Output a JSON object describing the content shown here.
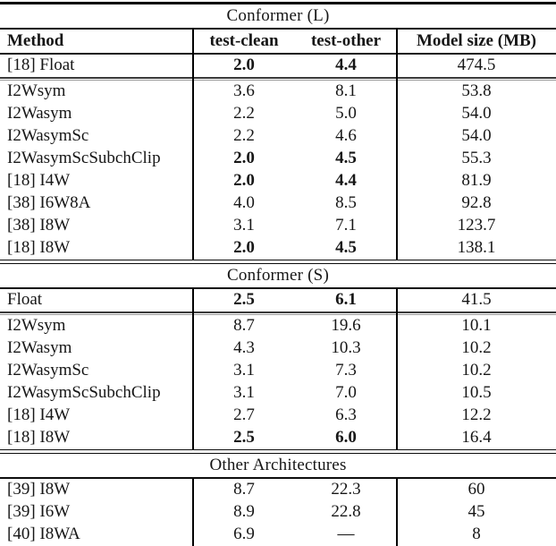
{
  "table": {
    "columns": [
      "Method",
      "test-clean",
      "test-other",
      "Model size (MB)"
    ],
    "sections": [
      {
        "title": "Conformer (L)",
        "lead_row": {
          "method": "[18] Float",
          "clean": "2.0",
          "other": "4.4",
          "size": "474.5",
          "bold": true
        },
        "rows": [
          {
            "method": "I2Wsym",
            "clean": "3.6",
            "other": "8.1",
            "size": "53.8",
            "bold": false
          },
          {
            "method": "I2Wasym",
            "clean": "2.2",
            "other": "5.0",
            "size": "54.0",
            "bold": false
          },
          {
            "method": "I2WasymSc",
            "clean": "2.2",
            "other": "4.6",
            "size": "54.0",
            "bold": false
          },
          {
            "method": "I2WasymScSubchClip",
            "clean": "2.0",
            "other": "4.5",
            "size": "55.3",
            "bold": true
          },
          {
            "method": "[18] I4W",
            "clean": "2.0",
            "other": "4.4",
            "size": "81.9",
            "bold": true
          },
          {
            "method": "[38] I6W8A",
            "clean": "4.0",
            "other": "8.5",
            "size": "92.8",
            "bold": false
          },
          {
            "method": "[38] I8W",
            "clean": "3.1",
            "other": "7.1",
            "size": "123.7",
            "bold": false
          },
          {
            "method": "[18] I8W",
            "clean": "2.0",
            "other": "4.5",
            "size": "138.1",
            "bold": true
          }
        ]
      },
      {
        "title": "Conformer (S)",
        "lead_row": {
          "method": "Float",
          "clean": "2.5",
          "other": "6.1",
          "size": "41.5",
          "bold": true
        },
        "rows": [
          {
            "method": "I2Wsym",
            "clean": "8.7",
            "other": "19.6",
            "size": "10.1",
            "bold": false
          },
          {
            "method": "I2Wasym",
            "clean": "4.3",
            "other": "10.3",
            "size": "10.2",
            "bold": false
          },
          {
            "method": "I2WasymSc",
            "clean": "3.1",
            "other": "7.3",
            "size": "10.2",
            "bold": false
          },
          {
            "method": "I2WasymScSubchClip",
            "clean": "3.1",
            "other": "7.0",
            "size": "10.5",
            "bold": false
          },
          {
            "method": "[18] I4W",
            "clean": "2.7",
            "other": "6.3",
            "size": "12.2",
            "bold": false
          },
          {
            "method": "[18] I8W",
            "clean": "2.5",
            "other": "6.0",
            "size": "16.4",
            "bold": true
          }
        ]
      },
      {
        "title": "Other Architectures",
        "rows": [
          {
            "method": "[39] I8W",
            "clean": "8.7",
            "other": "22.3",
            "size": "60",
            "bold": false
          },
          {
            "method": "[39] I6W",
            "clean": "8.9",
            "other": "22.8",
            "size": "45",
            "bold": false
          },
          {
            "method": "[40] I8WA",
            "clean": "6.9",
            "other": "—",
            "size": "8",
            "bold": false
          }
        ]
      }
    ]
  }
}
